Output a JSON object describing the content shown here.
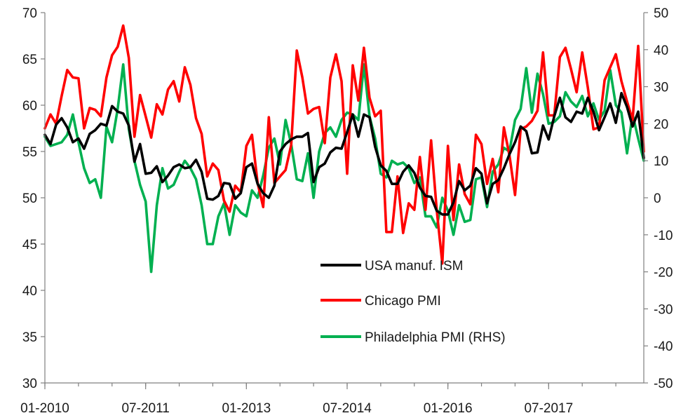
{
  "chart_data": {
    "type": "line",
    "title": "",
    "xlabel": "",
    "ylabel": "",
    "x_tick_labels": [
      "01-2010",
      "07-2011",
      "01-2013",
      "07-2014",
      "01-2016",
      "07-2017"
    ],
    "y_left": {
      "ylim": [
        30,
        70
      ],
      "ticks": [
        "30",
        "35",
        "40",
        "45",
        "50",
        "55",
        "60",
        "65",
        "70"
      ]
    },
    "y_right": {
      "ylim": [
        -50,
        50
      ],
      "ticks": [
        "-50",
        "-40",
        "-30",
        "-20",
        "-10",
        "0",
        "10",
        "20",
        "30",
        "40",
        "50"
      ]
    },
    "grid": false,
    "legend_position": "center-right",
    "series": [
      {
        "name": "USA manuf. ISM",
        "axis": "left",
        "color": "#000000",
        "x": [
          "2010-01",
          "2010-02",
          "2010-03",
          "2010-04",
          "2010-05",
          "2010-06",
          "2010-07",
          "2010-08",
          "2010-09",
          "2010-10",
          "2010-11",
          "2010-12",
          "2011-01",
          "2011-02",
          "2011-03",
          "2011-04",
          "2011-05",
          "2011-06",
          "2011-07",
          "2011-08",
          "2011-09",
          "2011-10",
          "2011-11",
          "2011-12",
          "2012-01",
          "2012-02",
          "2012-03",
          "2012-04",
          "2012-05",
          "2012-06",
          "2012-07",
          "2012-08",
          "2012-09",
          "2012-10",
          "2012-11",
          "2012-12",
          "2013-01",
          "2013-02",
          "2013-03",
          "2013-04",
          "2013-05",
          "2013-06",
          "2013-07",
          "2013-08",
          "2013-09",
          "2013-10",
          "2013-11",
          "2013-12",
          "2014-01",
          "2014-02",
          "2014-03",
          "2014-04",
          "2014-05",
          "2014-06",
          "2014-07",
          "2014-08",
          "2014-09",
          "2014-10",
          "2014-11",
          "2014-12",
          "2015-01",
          "2015-02",
          "2015-03",
          "2015-04",
          "2015-05",
          "2015-06",
          "2015-07",
          "2015-08",
          "2015-09",
          "2015-10",
          "2015-11",
          "2015-12",
          "2016-01",
          "2016-02",
          "2016-03",
          "2016-04",
          "2016-05",
          "2016-06",
          "2016-07",
          "2016-08",
          "2016-09",
          "2016-10",
          "2016-11",
          "2016-12",
          "2017-01",
          "2017-02",
          "2017-03",
          "2017-04",
          "2017-05",
          "2017-06",
          "2017-07",
          "2017-08",
          "2017-09",
          "2017-10",
          "2017-11",
          "2017-12",
          "2018-01",
          "2018-02",
          "2018-03",
          "2018-04",
          "2018-05",
          "2018-06",
          "2018-07",
          "2018-08",
          "2018-09",
          "2018-10",
          "2018-11",
          "2018-12"
        ],
        "values": [
          56.8,
          55.8,
          57.9,
          58.6,
          57.6,
          56.0,
          56.4,
          55.3,
          56.9,
          57.3,
          58.0,
          57.8,
          59.9,
          59.3,
          59.1,
          57.8,
          53.9,
          55.8,
          52.6,
          52.7,
          53.4,
          51.7,
          52.4,
          53.3,
          53.6,
          53.2,
          53.3,
          54.1,
          52.8,
          49.9,
          49.8,
          50.2,
          51.6,
          51.5,
          49.9,
          50.5,
          53.3,
          53.7,
          51.5,
          50.5,
          50.0,
          51.3,
          55.0,
          55.8,
          56.3,
          56.6,
          56.6,
          57.0,
          51.7,
          53.3,
          53.7,
          54.9,
          55.4,
          55.3,
          57.1,
          59.0,
          56.6,
          59.0,
          58.7,
          55.5,
          53.5,
          52.9,
          51.5,
          51.5,
          52.8,
          53.5,
          52.7,
          51.1,
          50.2,
          50.1,
          48.6,
          48.2,
          48.2,
          49.5,
          51.8,
          50.8,
          51.3,
          53.2,
          52.6,
          49.4,
          51.5,
          51.9,
          53.2,
          54.7,
          56.0,
          57.7,
          57.2,
          54.8,
          54.9,
          57.8,
          56.3,
          58.8,
          60.8,
          58.7,
          58.2,
          59.3,
          59.1,
          60.8,
          59.3,
          57.3,
          58.7,
          60.2,
          58.1,
          61.3,
          59.8,
          57.7,
          59.3,
          54.3
        ],
        "label": "USA manuf. ISM"
      },
      {
        "name": "Chicago PMI",
        "axis": "left",
        "color": "#ff0000",
        "x": [
          "2010-01",
          "2010-02",
          "2010-03",
          "2010-04",
          "2010-05",
          "2010-06",
          "2010-07",
          "2010-08",
          "2010-09",
          "2010-10",
          "2010-11",
          "2010-12",
          "2011-01",
          "2011-02",
          "2011-03",
          "2011-04",
          "2011-05",
          "2011-06",
          "2011-07",
          "2011-08",
          "2011-09",
          "2011-10",
          "2011-11",
          "2011-12",
          "2012-01",
          "2012-02",
          "2012-03",
          "2012-04",
          "2012-05",
          "2012-06",
          "2012-07",
          "2012-08",
          "2012-09",
          "2012-10",
          "2012-11",
          "2012-12",
          "2013-01",
          "2013-02",
          "2013-03",
          "2013-04",
          "2013-05",
          "2013-06",
          "2013-07",
          "2013-08",
          "2013-09",
          "2013-10",
          "2013-11",
          "2013-12",
          "2014-01",
          "2014-02",
          "2014-03",
          "2014-04",
          "2014-05",
          "2014-06",
          "2014-07",
          "2014-08",
          "2014-09",
          "2014-10",
          "2014-11",
          "2014-12",
          "2015-01",
          "2015-02",
          "2015-03",
          "2015-04",
          "2015-05",
          "2015-06",
          "2015-07",
          "2015-08",
          "2015-09",
          "2015-10",
          "2015-11",
          "2015-12",
          "2016-01",
          "2016-02",
          "2016-03",
          "2016-04",
          "2016-05",
          "2016-06",
          "2016-07",
          "2016-08",
          "2016-09",
          "2016-10",
          "2016-11",
          "2016-12",
          "2017-01",
          "2017-02",
          "2017-03",
          "2017-04",
          "2017-05",
          "2017-06",
          "2017-07",
          "2017-08",
          "2017-09",
          "2017-10",
          "2017-11",
          "2017-12",
          "2018-01",
          "2018-02",
          "2018-03",
          "2018-04",
          "2018-05",
          "2018-06",
          "2018-07",
          "2018-08",
          "2018-09",
          "2018-10",
          "2018-11",
          "2018-12"
        ],
        "values": [
          57.5,
          59.0,
          58.0,
          61.0,
          63.8,
          63.0,
          62.9,
          57.5,
          59.7,
          59.5,
          58.8,
          63.0,
          65.4,
          66.3,
          68.6,
          65.1,
          56.6,
          61.1,
          58.8,
          56.5,
          60.1,
          59.0,
          61.7,
          62.6,
          60.4,
          64.1,
          62.2,
          58.6,
          56.9,
          52.3,
          53.7,
          53.0,
          49.7,
          48.5,
          51.3,
          50.6,
          55.6,
          56.8,
          51.6,
          49.0,
          58.7,
          51.6,
          52.3,
          53.0,
          55.7,
          65.9,
          63.0,
          59.1,
          59.6,
          59.8,
          55.9,
          63.0,
          65.5,
          62.6,
          52.6,
          64.3,
          60.5,
          66.2,
          60.8,
          58.8,
          59.4,
          46.3,
          46.3,
          52.3,
          46.2,
          49.4,
          48.7,
          54.4,
          48.7,
          56.2,
          48.7,
          42.9,
          55.6,
          47.6,
          53.6,
          50.4,
          49.3,
          56.8,
          55.8,
          51.5,
          54.2,
          50.6,
          57.6,
          54.6,
          50.3,
          57.4,
          57.7,
          58.3,
          59.4,
          65.7,
          58.9,
          58.9,
          65.2,
          66.2,
          63.9,
          61.4,
          65.7,
          61.9,
          57.4,
          57.6,
          62.7,
          64.1,
          65.5,
          62.6,
          60.4,
          58.4,
          66.4,
          55.0
        ],
        "label": "Chicago PMI"
      },
      {
        "name": "Philadelphia PMI (RHS)",
        "axis": "right",
        "color": "#00b050",
        "x": [
          "2010-01",
          "2010-02",
          "2010-03",
          "2010-04",
          "2010-05",
          "2010-06",
          "2010-07",
          "2010-08",
          "2010-09",
          "2010-10",
          "2010-11",
          "2010-12",
          "2011-01",
          "2011-02",
          "2011-03",
          "2011-04",
          "2011-05",
          "2011-06",
          "2011-07",
          "2011-08",
          "2011-09",
          "2011-10",
          "2011-11",
          "2011-12",
          "2012-01",
          "2012-02",
          "2012-03",
          "2012-04",
          "2012-05",
          "2012-06",
          "2012-07",
          "2012-08",
          "2012-09",
          "2012-10",
          "2012-11",
          "2012-12",
          "2013-01",
          "2013-02",
          "2013-03",
          "2013-04",
          "2013-05",
          "2013-06",
          "2013-07",
          "2013-08",
          "2013-09",
          "2013-10",
          "2013-11",
          "2013-12",
          "2014-01",
          "2014-02",
          "2014-03",
          "2014-04",
          "2014-05",
          "2014-06",
          "2014-07",
          "2014-08",
          "2014-09",
          "2014-10",
          "2014-11",
          "2014-12",
          "2015-01",
          "2015-02",
          "2015-03",
          "2015-04",
          "2015-05",
          "2015-06",
          "2015-07",
          "2015-08",
          "2015-09",
          "2015-10",
          "2015-11",
          "2015-12",
          "2016-01",
          "2016-02",
          "2016-03",
          "2016-04",
          "2016-05",
          "2016-06",
          "2016-07",
          "2016-08",
          "2016-09",
          "2016-10",
          "2016-11",
          "2016-12",
          "2017-01",
          "2017-02",
          "2017-03",
          "2017-04",
          "2017-05",
          "2017-06",
          "2017-07",
          "2017-08",
          "2017-09",
          "2017-10",
          "2017-11",
          "2017-12",
          "2018-01",
          "2018-02",
          "2018-03",
          "2018-04",
          "2018-05",
          "2018-06",
          "2018-07",
          "2018-08",
          "2018-09",
          "2018-10",
          "2018-11",
          "2018-12"
        ],
        "values": [
          16.5,
          14.0,
          14.5,
          15.0,
          17.0,
          22.5,
          15.0,
          8.0,
          4.0,
          5.0,
          0.0,
          19.2,
          15.0,
          24.0,
          36.0,
          18.5,
          10.0,
          3.5,
          -1.0,
          -20.0,
          -2.0,
          8.0,
          2.5,
          3.5,
          7.0,
          10.0,
          8.0,
          5.0,
          -2.0,
          -12.5,
          -12.5,
          -5.0,
          -1.5,
          -10.0,
          -2.0,
          -4.0,
          -5.0,
          2.0,
          0.0,
          6.0,
          13.5,
          16.0,
          9.0,
          21.0,
          14.5,
          5.0,
          4.5,
          12.0,
          0.0,
          12.5,
          17.5,
          19.0,
          16.5,
          21.0,
          23.0,
          22.5,
          21.0,
          36.0,
          22.0,
          16.0,
          6.5,
          5.5,
          10.0,
          9.0,
          9.5,
          8.0,
          4.0,
          5.5,
          -5.0,
          -5.0,
          -8.0,
          0.0,
          -3.5,
          -10.0,
          -2.0,
          -6.5,
          -6.0,
          5.0,
          5.5,
          -2.5,
          7.0,
          9.0,
          13.5,
          12.5,
          21.0,
          24.0,
          35.0,
          23.0,
          33.5,
          28.0,
          20.0,
          20.5,
          22.0,
          28.5,
          26.0,
          24.5,
          27.5,
          22.0,
          25.5,
          21.0,
          23.5,
          34.5,
          25.0,
          23.0,
          12.0,
          22.5,
          16.0,
          10.0
        ],
        "label": "Philadelphia PMI (RHS)"
      }
    ]
  }
}
